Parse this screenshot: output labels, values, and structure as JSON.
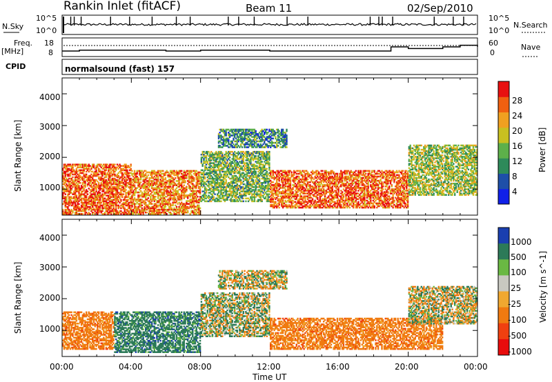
{
  "header": {
    "station": "Rankin Inlet (fitACF)",
    "beam": "Beam 11",
    "date": "02/Sep/2010"
  },
  "top_panels": {
    "nsky_label": "N.Sky",
    "nsearch_label": "N.Search",
    "count_axis_top": "10^5",
    "count_axis_bottom": "10^0",
    "freq_label_1": "Freq.",
    "freq_label_2": "[MHz]",
    "freq_ticks": [
      "18",
      "8"
    ],
    "nave_label": "Nave",
    "nave_ticks": [
      "60",
      "0"
    ],
    "cpid_label": "CPID",
    "cpid_text": "normalsound (fast) 157"
  },
  "power_panel": {
    "ylabel": "Slant Range [km]",
    "yticks": [
      "1000",
      "2000",
      "3000",
      "4000"
    ],
    "colorbar_label": "Power [dB]",
    "colorbar_ticks": [
      "4",
      "8",
      "12",
      "16",
      "20",
      "24",
      "28"
    ]
  },
  "velocity_panel": {
    "ylabel": "Slant Range [km]",
    "yticks": [
      "1000",
      "2000",
      "3000",
      "4000"
    ],
    "colorbar_label": "Velocity [m s^-1]",
    "colorbar_ticks": [
      "1000",
      "500",
      "100",
      "25",
      "-25",
      "-100",
      "-500",
      "-1000"
    ]
  },
  "xaxis": {
    "label": "Time UT",
    "ticks": [
      "00:00",
      "04:00",
      "08:00",
      "12:00",
      "16:00",
      "20:00",
      "00:00"
    ]
  },
  "colors": {
    "power_scale": [
      "#1020e8",
      "#1e4fa8",
      "#2e8a5a",
      "#5db04a",
      "#c8c020",
      "#f0a020",
      "#f06010",
      "#e81010"
    ],
    "velocity_scale": [
      "#1a3fb0",
      "#2c7a58",
      "#6ab843",
      "#c8c8c0",
      "#f0a830",
      "#f07a10",
      "#f04010",
      "#e80c0c"
    ]
  },
  "chart_data": [
    {
      "type": "line",
      "title": "N.Sky / N.Search",
      "x": [
        0,
        2,
        4,
        6,
        8,
        10,
        12,
        14,
        16,
        18,
        20,
        22,
        24
      ],
      "series": [
        {
          "name": "N.Sky",
          "values": [
            3,
            3,
            3,
            3,
            3,
            3,
            3,
            3,
            3,
            3,
            3,
            3,
            3
          ]
        },
        {
          "name": "N.Search",
          "values": [
            3,
            3,
            3,
            3,
            3,
            3,
            3,
            3,
            3,
            3,
            3,
            3,
            3
          ]
        }
      ],
      "ylim": [
        0,
        5
      ]
    },
    {
      "type": "line",
      "title": "Freq / Nave",
      "x": [
        0,
        1,
        2,
        3,
        4,
        5,
        6,
        7,
        8,
        9,
        10,
        11,
        12,
        13,
        14,
        15,
        16,
        17,
        18,
        19,
        20,
        21,
        22,
        23,
        24
      ],
      "series": [
        {
          "name": "Freq. [MHz]",
          "values": [
            10.5,
            11,
            11,
            11,
            11,
            11,
            10.5,
            10.5,
            11,
            11,
            11,
            11,
            10.5,
            10.5,
            10.5,
            10.5,
            10.5,
            10.5,
            10.5,
            13,
            12,
            12,
            13,
            14,
            13
          ]
        },
        {
          "name": "Nave",
          "values": [
            35,
            35,
            35,
            35,
            35,
            35,
            35,
            35,
            35,
            35,
            35,
            35,
            35,
            35,
            35,
            35,
            35,
            35,
            35,
            35,
            35,
            35,
            35,
            35,
            35
          ]
        }
      ],
      "ylim": [
        8,
        18
      ]
    },
    {
      "type": "heatmap",
      "title": "Power [dB]",
      "xlabel": "Time UT",
      "ylabel": "Slant Range [km]",
      "xlim": [
        0,
        24
      ],
      "ylim": [
        180,
        4500
      ],
      "regions": [
        {
          "x": [
            0,
            4
          ],
          "y": [
            200,
            1800
          ],
          "value": 26
        },
        {
          "x": [
            4,
            8
          ],
          "y": [
            200,
            1600
          ],
          "value": 24
        },
        {
          "x": [
            8,
            12
          ],
          "y": [
            600,
            2200
          ],
          "value": 14
        },
        {
          "x": [
            12,
            20
          ],
          "y": [
            400,
            1600
          ],
          "value": 26
        },
        {
          "x": [
            20,
            24
          ],
          "y": [
            800,
            2400
          ],
          "value": 16
        },
        {
          "x": [
            9,
            13
          ],
          "y": [
            2300,
            2900
          ],
          "value": 10
        }
      ]
    },
    {
      "type": "heatmap",
      "title": "Velocity [m s-1]",
      "xlabel": "Time UT",
      "ylabel": "Slant Range [km]",
      "xlim": [
        0,
        24
      ],
      "ylim": [
        180,
        4500
      ],
      "regions": [
        {
          "x": [
            0,
            3
          ],
          "y": [
            400,
            1600
          ],
          "value": -300
        },
        {
          "x": [
            3,
            8
          ],
          "y": [
            300,
            1600
          ],
          "value": 300
        },
        {
          "x": [
            8,
            12
          ],
          "y": [
            800,
            2200
          ],
          "value": 50
        },
        {
          "x": [
            9,
            13
          ],
          "y": [
            2300,
            2900
          ],
          "value": 0
        },
        {
          "x": [
            12,
            22
          ],
          "y": [
            400,
            1400
          ],
          "value": -300
        },
        {
          "x": [
            20,
            24
          ],
          "y": [
            1200,
            2400
          ],
          "value": 0
        }
      ]
    }
  ]
}
